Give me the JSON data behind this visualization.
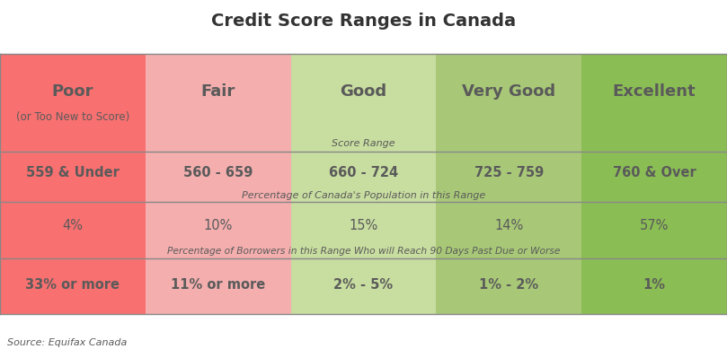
{
  "title": "Credit Score Ranges in Canada",
  "source": "Source: Equifax Canada",
  "columns": [
    "Poor",
    "Fair",
    "Good",
    "Very Good",
    "Excellent"
  ],
  "subtitles": [
    "(or Too New to Score)",
    "",
    "",
    "",
    ""
  ],
  "score_range_label": "Score Range",
  "score_ranges": [
    "559 & Under",
    "560 - 659",
    "660 - 724",
    "725 - 759",
    "760 & Over"
  ],
  "population_label": "Percentage of Canada's Population in this Range",
  "population_pct": [
    "4%",
    "10%",
    "15%",
    "14%",
    "57%"
  ],
  "borrower_label": "Percentage of Borrowers in this Range Who will Reach 90 Days Past Due or Worse",
  "borrower_pct": [
    "33% or more",
    "11% or more",
    "2% - 5%",
    "1% - 2%",
    "1%"
  ],
  "col_colors": [
    "#F97070",
    "#F4AEAE",
    "#C8DDA0",
    "#A8C878",
    "#8BBD55"
  ],
  "text_color": "#5a5a5a",
  "line_color": "#888888",
  "bg_color": "#ffffff",
  "title_color": "#333333",
  "title_fontsize": 14,
  "header_fontsize": 13,
  "subtitle_fontsize": 8.5,
  "data_fontsize": 10.5,
  "label_fontsize": 8,
  "source_fontsize": 8
}
